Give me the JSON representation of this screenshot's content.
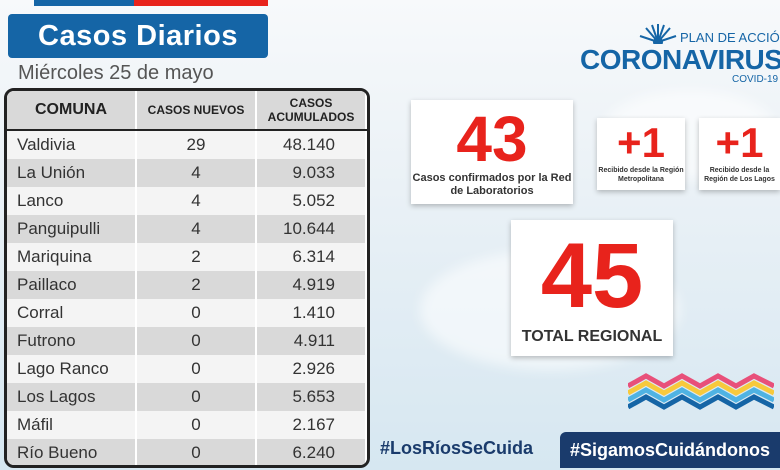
{
  "header": {
    "title": "Casos Diarios",
    "date": "Miércoles 25 de mayo"
  },
  "table": {
    "columns": [
      "COMUNA",
      "CASOS NUEVOS",
      "CASOS ACUMULADOS"
    ],
    "rows": [
      {
        "comuna": "Valdivia",
        "nuevos": "29",
        "acumulados": "48.140"
      },
      {
        "comuna": "La Unión",
        "nuevos": "4",
        "acumulados": "9.033"
      },
      {
        "comuna": "Lanco",
        "nuevos": "4",
        "acumulados": "5.052"
      },
      {
        "comuna": "Panguipulli",
        "nuevos": "4",
        "acumulados": "10.644"
      },
      {
        "comuna": "Mariquina",
        "nuevos": "2",
        "acumulados": "6.314"
      },
      {
        "comuna": "Paillaco",
        "nuevos": "2",
        "acumulados": "4.919"
      },
      {
        "comuna": "Corral",
        "nuevos": "0",
        "acumulados": "1.410"
      },
      {
        "comuna": "Futrono",
        "nuevos": "0",
        "acumulados": "4.911"
      },
      {
        "comuna": "Lago Ranco",
        "nuevos": "0",
        "acumulados": "2.926"
      },
      {
        "comuna": "Los Lagos",
        "nuevos": "0",
        "acumulados": "5.653"
      },
      {
        "comuna": "Máfil",
        "nuevos": "0",
        "acumulados": "2.167"
      },
      {
        "comuna": "Río Bueno",
        "nuevos": "0",
        "acumulados": "6.240"
      }
    ]
  },
  "logo": {
    "plan": "PLAN DE ACCIÓN",
    "name": "CORONAVIRUS",
    "sub": "COVID-19"
  },
  "summary": {
    "lab_count": "43",
    "lab_caption": "Casos confirmados por la Red de Laboratorios",
    "metro_count": "+1",
    "metro_caption": "Recibido desde la Región Metropolitana",
    "lagos_count": "+1",
    "lagos_caption": "Recibido desde la Región de Los Lagos",
    "total_count": "45",
    "total_caption": "TOTAL REGIONAL"
  },
  "footer": {
    "hashtag_1": "#LosRíosSeCuida",
    "hashtag_2": "#SigamosCuidándonos"
  },
  "colors": {
    "brand_blue": "#1565a6",
    "navy": "#1a3b6c",
    "accent_red": "#e8231c"
  }
}
